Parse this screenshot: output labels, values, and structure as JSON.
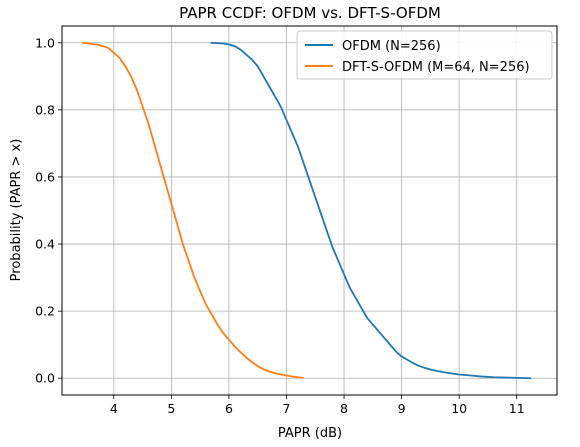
{
  "chart_data": {
    "type": "line",
    "title": "PAPR CCDF: OFDM vs. DFT-S-OFDM",
    "xlabel": "PAPR (dB)",
    "ylabel": "Probability (PAPR > x)",
    "xlim": [
      3.1,
      11.7
    ],
    "ylim": [
      -0.05,
      1.05
    ],
    "xticks": [
      4,
      5,
      6,
      7,
      8,
      9,
      10,
      11
    ],
    "xtick_labels": [
      "4",
      "5",
      "6",
      "7",
      "8",
      "9",
      "10",
      "11"
    ],
    "yticks": [
      0.0,
      0.2,
      0.4,
      0.6,
      0.8,
      1.0
    ],
    "ytick_labels": [
      "0.0",
      "0.2",
      "0.4",
      "0.6",
      "0.8",
      "1.0"
    ],
    "grid": true,
    "legend_position": "top-right",
    "series": [
      {
        "name": "OFDM (N=256)",
        "color": "#1f77b4",
        "x": [
          5.68,
          5.9,
          6.0,
          6.1,
          6.2,
          6.3,
          6.4,
          6.5,
          6.6,
          6.7,
          6.8,
          6.9,
          7.0,
          7.1,
          7.2,
          7.3,
          7.4,
          7.5,
          7.6,
          7.7,
          7.8,
          7.9,
          8.0,
          8.1,
          8.2,
          8.3,
          8.4,
          8.5,
          8.6,
          8.7,
          8.8,
          8.9,
          9.0,
          9.1,
          9.2,
          9.3,
          9.4,
          9.5,
          9.6,
          9.8,
          10.0,
          10.2,
          10.4,
          10.6,
          10.8,
          11.0,
          11.25
        ],
        "y": [
          1.0,
          0.998,
          0.995,
          0.99,
          0.98,
          0.965,
          0.95,
          0.93,
          0.9,
          0.87,
          0.84,
          0.81,
          0.77,
          0.73,
          0.69,
          0.64,
          0.59,
          0.54,
          0.49,
          0.44,
          0.39,
          0.35,
          0.31,
          0.27,
          0.24,
          0.21,
          0.18,
          0.16,
          0.14,
          0.12,
          0.1,
          0.08,
          0.065,
          0.055,
          0.045,
          0.037,
          0.031,
          0.026,
          0.022,
          0.016,
          0.011,
          0.008,
          0.005,
          0.003,
          0.002,
          0.001,
          0.0
        ]
      },
      {
        "name": "DFT-S-OFDM (M=64, N=256)",
        "color": "#ff7f0e",
        "x": [
          3.45,
          3.6,
          3.75,
          3.9,
          4.0,
          4.1,
          4.2,
          4.3,
          4.4,
          4.5,
          4.6,
          4.7,
          4.8,
          4.9,
          5.0,
          5.1,
          5.2,
          5.3,
          5.4,
          5.5,
          5.6,
          5.7,
          5.8,
          5.9,
          6.0,
          6.1,
          6.2,
          6.3,
          6.4,
          6.5,
          6.6,
          6.7,
          6.8,
          6.9,
          7.0,
          7.1,
          7.2,
          7.3
        ],
        "y": [
          1.0,
          0.997,
          0.993,
          0.985,
          0.97,
          0.955,
          0.93,
          0.9,
          0.86,
          0.81,
          0.76,
          0.7,
          0.64,
          0.58,
          0.52,
          0.46,
          0.4,
          0.35,
          0.3,
          0.26,
          0.22,
          0.19,
          0.16,
          0.135,
          0.115,
          0.095,
          0.078,
          0.062,
          0.048,
          0.036,
          0.027,
          0.02,
          0.015,
          0.011,
          0.008,
          0.005,
          0.003,
          0.001
        ]
      }
    ]
  }
}
